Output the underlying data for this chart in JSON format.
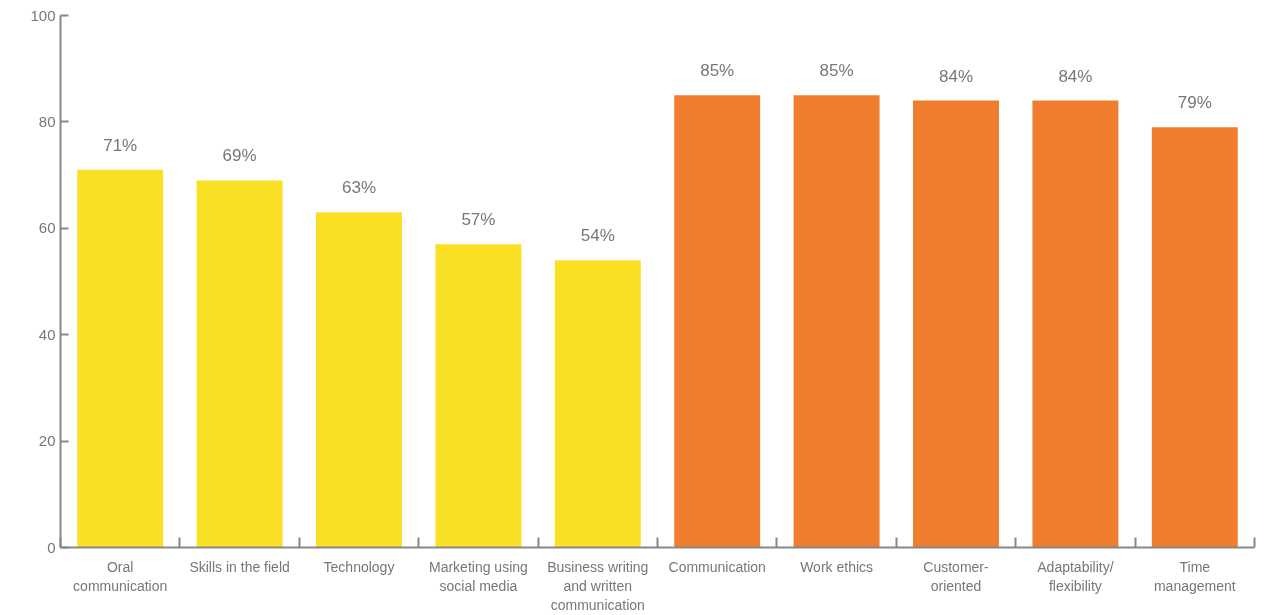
{
  "chart_data": {
    "type": "bar",
    "categories": [
      "Oral\ncommunication",
      "Skills in the field",
      "Technology",
      "Marketing using\nsocial media",
      "Business writing\nand written\ncommunication",
      "Communication",
      "Work ethics",
      "Customer-\noriented",
      "Adaptability/\nflexibility",
      "Time\nmanagement"
    ],
    "values": [
      71,
      69,
      63,
      57,
      54,
      85,
      85,
      84,
      84,
      79
    ],
    "colors": [
      "#f9e025",
      "#f9e025",
      "#f9e025",
      "#f9e025",
      "#f9e025",
      "#ef7d2d",
      "#ef7d2d",
      "#ef7d2d",
      "#ef7d2d",
      "#ef7d2d"
    ],
    "value_labels": [
      "71%",
      "69%",
      "63%",
      "57%",
      "54%",
      "85%",
      "85%",
      "84%",
      "84%",
      "79%"
    ],
    "ylim": [
      0,
      100
    ],
    "yticks": [
      0,
      20,
      40,
      60,
      80,
      100
    ],
    "grid": false
  }
}
